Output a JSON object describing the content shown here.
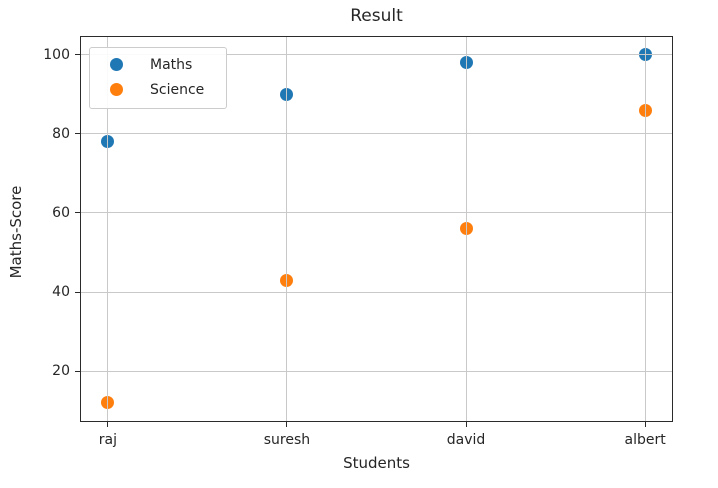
{
  "figure": {
    "background": "#ffffff",
    "text_color": "#262626"
  },
  "chart_data": {
    "type": "scatter",
    "title": "Result",
    "xlabel": "Students",
    "ylabel": "Maths-Score",
    "categories": [
      "raj",
      "suresh",
      "david",
      "albert"
    ],
    "series": [
      {
        "name": "Maths",
        "color": "#1f77b4",
        "values": [
          78,
          90,
          98,
          100
        ]
      },
      {
        "name": "Science",
        "color": "#ff7f0e",
        "values": [
          12,
          43,
          56,
          86
        ]
      }
    ],
    "yticks": [
      20,
      40,
      60,
      80,
      100
    ],
    "ylim": [
      7.4,
      104.5
    ],
    "xlim": [
      -0.15,
      3.15
    ],
    "grid": true,
    "grid_color": "#c9c9c9",
    "grid_above_points": true,
    "legend_position": "upper left"
  }
}
